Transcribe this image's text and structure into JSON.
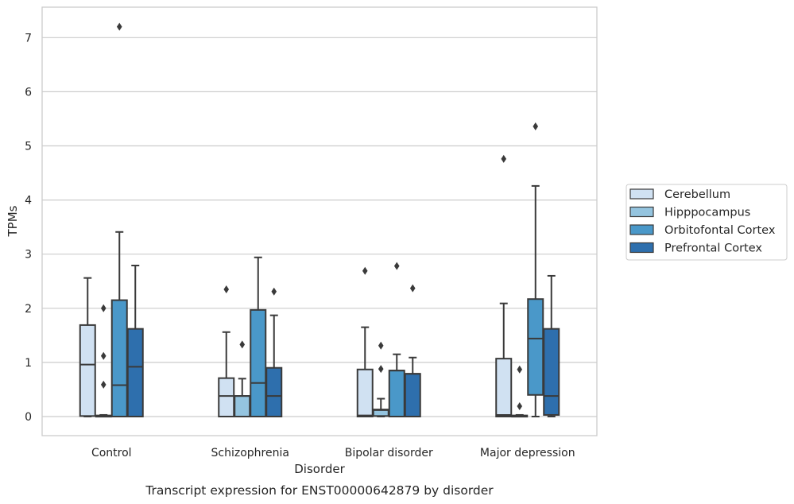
{
  "chart_data": {
    "type": "box",
    "title": "",
    "caption": "Transcript expression for ENST00000642879 by disorder",
    "xlabel": "Disorder",
    "ylabel": "TPMs",
    "ylim": [
      -0.35,
      7.55
    ],
    "yticks": [
      "0",
      "1",
      "2",
      "3",
      "4",
      "5",
      "6",
      "7"
    ],
    "grid": "horizontal",
    "legend_position": "right",
    "categories": [
      "Control",
      "Schizophrenia",
      "Bipolar disorder",
      "Major depression"
    ],
    "series": [
      {
        "name": "Cerebellum",
        "color": "#d0e1f2",
        "boxes": [
          {
            "min": 0.0,
            "q1": 0.01,
            "median": 0.96,
            "q3": 1.69,
            "max": 2.56,
            "outliers": []
          },
          {
            "min": 0.0,
            "q1": 0.0,
            "median": 0.38,
            "q3": 0.71,
            "max": 1.56,
            "outliers": [
              2.35
            ]
          },
          {
            "min": 0.0,
            "q1": 0.0,
            "median": 0.02,
            "q3": 0.87,
            "max": 1.65,
            "outliers": [
              2.69
            ]
          },
          {
            "min": 0.0,
            "q1": 0.0,
            "median": 0.03,
            "q3": 1.07,
            "max": 2.09,
            "outliers": [
              4.76
            ]
          }
        ]
      },
      {
        "name": "Hipppocampus",
        "color": "#94c4df",
        "boxes": [
          {
            "min": 0.0,
            "q1": 0.0,
            "median": 0.01,
            "q3": 0.02,
            "max": 0.03,
            "outliers": [
              0.59,
              1.12,
              2.0
            ]
          },
          {
            "min": 0.0,
            "q1": 0.0,
            "median": 0.38,
            "q3": 0.38,
            "max": 0.7,
            "outliers": [
              1.33
            ]
          },
          {
            "min": 0.0,
            "q1": 0.01,
            "median": 0.12,
            "q3": 0.13,
            "max": 0.33,
            "outliers": [
              0.88,
              1.31
            ]
          },
          {
            "min": 0.0,
            "q1": 0.0,
            "median": 0.01,
            "q3": 0.02,
            "max": 0.03,
            "outliers": [
              0.19,
              0.87
            ]
          }
        ]
      },
      {
        "name": "Orbitofontal Cortex",
        "color": "#4a98c9",
        "boxes": [
          {
            "min": 0.0,
            "q1": 0.0,
            "median": 0.58,
            "q3": 2.15,
            "max": 3.41,
            "outliers": [
              7.2
            ]
          },
          {
            "min": 0.0,
            "q1": 0.0,
            "median": 0.62,
            "q3": 1.97,
            "max": 2.94,
            "outliers": []
          },
          {
            "min": 0.0,
            "q1": 0.0,
            "median": 0.85,
            "q3": 0.85,
            "max": 1.15,
            "outliers": [
              2.78
            ]
          },
          {
            "min": 0.0,
            "q1": 0.4,
            "median": 1.44,
            "q3": 2.17,
            "max": 4.26,
            "outliers": [
              5.36
            ]
          }
        ]
      },
      {
        "name": "Prefrontal Cortex",
        "color": "#2e6fad",
        "boxes": [
          {
            "min": 0.0,
            "q1": 0.0,
            "median": 0.92,
            "q3": 1.62,
            "max": 2.79,
            "outliers": []
          },
          {
            "min": 0.0,
            "q1": 0.0,
            "median": 0.38,
            "q3": 0.9,
            "max": 1.87,
            "outliers": [
              2.31
            ]
          },
          {
            "min": 0.0,
            "q1": 0.0,
            "median": 0.79,
            "q3": 0.79,
            "max": 1.09,
            "outliers": [
              2.37
            ]
          },
          {
            "min": 0.0,
            "q1": 0.03,
            "median": 0.38,
            "q3": 1.62,
            "max": 2.6,
            "outliers": []
          }
        ]
      }
    ]
  }
}
